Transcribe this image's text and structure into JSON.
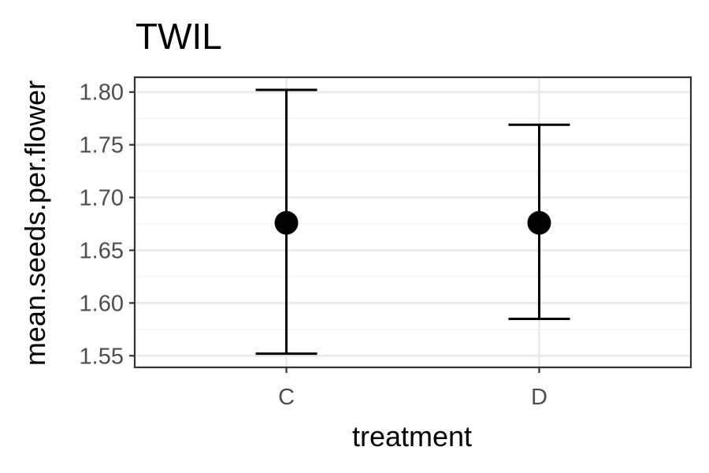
{
  "chart_data": {
    "type": "scatter",
    "title": "TWIL",
    "xlabel": "treatment",
    "ylabel": "mean.seeds.per.flower",
    "categories": [
      "C",
      "D"
    ],
    "series": [
      {
        "values": [
          1.676,
          1.676
        ],
        "lower": [
          1.552,
          1.585
        ],
        "upper": [
          1.802,
          1.769
        ]
      }
    ],
    "yticks": [
      1.55,
      1.6,
      1.65,
      1.7,
      1.75,
      1.8
    ],
    "ytick_labels": [
      "1.55",
      "1.60",
      "1.65",
      "1.70",
      "1.75",
      "1.80"
    ],
    "ylim": [
      1.539,
      1.814
    ],
    "grid": true,
    "style": {
      "background": "#ffffff",
      "grid_color": "#ebebeb",
      "point_color": "#000000",
      "border_color": "#333333",
      "tick_label_color": "#4d4d4d"
    }
  }
}
